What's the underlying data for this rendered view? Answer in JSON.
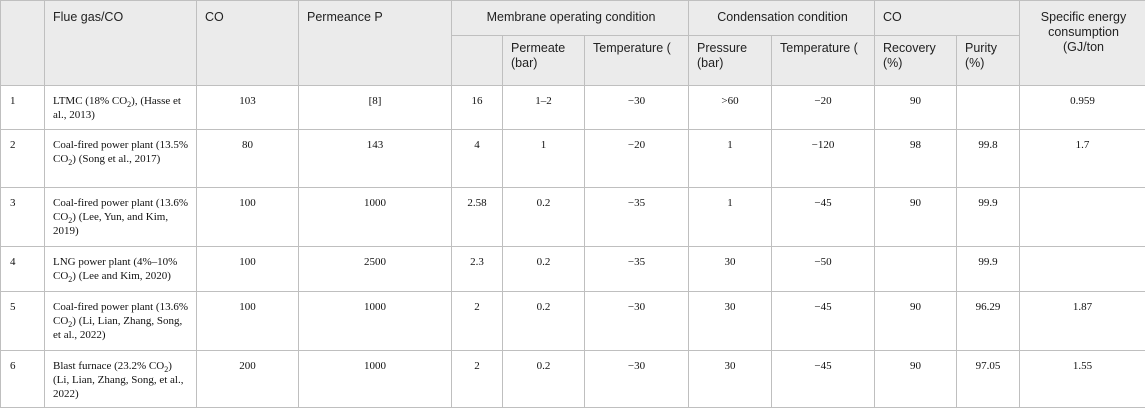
{
  "header": {
    "flue_gas": "Flue gas/CO",
    "co": "CO",
    "permeance": "Permeance P",
    "membrane_condition": "Membrane operating condition",
    "condensation_condition": "Condensation condition",
    "co_group": "CO",
    "specific_energy": "Specific energy consumption (GJ/ton",
    "permeate_bar": "Permeate (bar)",
    "temperature_membrane": "Temperature (",
    "pressure_bar": "Pressure (bar)",
    "temperature_condensation": "Temperature (",
    "recovery": "Recovery (%)",
    "purity": "Purity (%)"
  },
  "rows": [
    {
      "no": "1",
      "source_pre": "LTMC (18% CO",
      "source_post": "), (Hasse et al., 2013)",
      "co": "103",
      "permeance": "[8]",
      "membrane": "16",
      "permeate": "1–2",
      "temp_mem": "−30",
      "pressure": ">60",
      "temp_cond": "−20",
      "recovery": "90",
      "purity": "",
      "energy": "0.959"
    },
    {
      "no": "2",
      "source_pre": "Coal-fired power plant (13.5% CO",
      "source_post": ") (Song et al., 2017)",
      "co": "80",
      "permeance": "143",
      "membrane": "4",
      "permeate": "1",
      "temp_mem": "−20",
      "pressure": "1",
      "temp_cond": "−120",
      "recovery": "98",
      "purity": "99.8",
      "energy": "1.7"
    },
    {
      "no": "3",
      "source_pre": "Coal-fired power plant (13.6% CO",
      "source_post": ") (Lee, Yun, and Kim, 2019)",
      "co": "100",
      "permeance": "1000",
      "membrane": "2.58",
      "permeate": "0.2",
      "temp_mem": "−35",
      "pressure": "1",
      "temp_cond": "−45",
      "recovery": "90",
      "purity": "99.9",
      "energy": ""
    },
    {
      "no": "4",
      "source_pre": "LNG power plant (4%–10% CO",
      "source_post": ") (Lee and Kim, 2020)",
      "co": "100",
      "permeance": "2500",
      "membrane": "2.3",
      "permeate": "0.2",
      "temp_mem": "−35",
      "pressure": "30",
      "temp_cond": "−50",
      "recovery": "",
      "purity": "99.9",
      "energy": ""
    },
    {
      "no": "5",
      "source_pre": "Coal-fired power plant (13.6% CO",
      "source_post": ") (Li, Lian, Zhang, Song, et al., 2022)",
      "co": "100",
      "permeance": "1000",
      "membrane": "2",
      "permeate": "0.2",
      "temp_mem": "−30",
      "pressure": "30",
      "temp_cond": "−45",
      "recovery": "90",
      "purity": "96.29",
      "energy": "1.87"
    },
    {
      "no": "6",
      "source_pre": "Blast furnace (23.2% CO",
      "source_post": ") (Li, Lian, Zhang, Song, et al., 2022)",
      "co": "200",
      "permeance": "1000",
      "membrane": "2",
      "permeate": "0.2",
      "temp_mem": "−30",
      "pressure": "30",
      "temp_cond": "−45",
      "recovery": "90",
      "purity": "97.05",
      "energy": "1.55"
    }
  ]
}
